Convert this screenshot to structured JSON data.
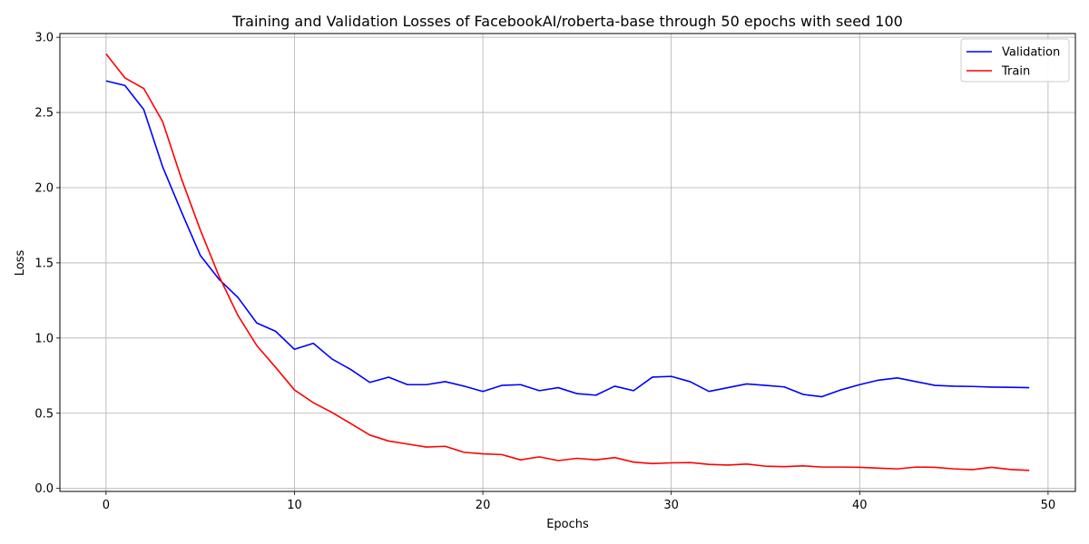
{
  "chart_data": {
    "type": "line",
    "title": "Training and Validation Losses of FacebookAI/roberta-base through 50 epochs with seed 100",
    "xlabel": "Epochs",
    "ylabel": "Loss",
    "xlim": [
      -2.45,
      51.45
    ],
    "ylim": [
      -0.02,
      3.025
    ],
    "xticks": [
      0,
      10,
      20,
      30,
      40,
      50
    ],
    "yticks": [
      0.0,
      0.5,
      1.0,
      1.5,
      2.0,
      2.5,
      3.0
    ],
    "xtick_labels": [
      "0",
      "10",
      "20",
      "30",
      "40",
      "50"
    ],
    "ytick_labels": [
      "0.0",
      "0.5",
      "1.0",
      "1.5",
      "2.0",
      "2.5",
      "3.0"
    ],
    "grid": true,
    "legend_position": "top-right",
    "x": [
      0,
      1,
      2,
      3,
      4,
      5,
      6,
      7,
      8,
      9,
      10,
      11,
      12,
      13,
      14,
      15,
      16,
      17,
      18,
      19,
      20,
      21,
      22,
      23,
      24,
      25,
      26,
      27,
      28,
      29,
      30,
      31,
      32,
      33,
      34,
      35,
      36,
      37,
      38,
      39,
      40,
      41,
      42,
      43,
      44,
      45,
      46,
      47,
      48,
      49
    ],
    "series": [
      {
        "name": "Validation",
        "color": "#0000ff",
        "values": [
          2.71,
          2.68,
          2.52,
          2.14,
          1.84,
          1.55,
          1.39,
          1.27,
          1.1,
          1.045,
          0.925,
          0.965,
          0.86,
          0.79,
          0.705,
          0.74,
          0.69,
          0.69,
          0.71,
          0.68,
          0.645,
          0.685,
          0.69,
          0.65,
          0.67,
          0.63,
          0.62,
          0.68,
          0.65,
          0.74,
          0.745,
          0.71,
          0.645,
          0.67,
          0.695,
          0.685,
          0.675,
          0.625,
          0.61,
          0.655,
          0.69,
          0.72,
          0.735,
          0.71,
          0.685,
          0.68,
          0.678,
          0.674,
          0.672,
          0.67
        ]
      },
      {
        "name": "Train",
        "color": "#ff0000",
        "values": [
          2.89,
          2.73,
          2.66,
          2.44,
          2.06,
          1.72,
          1.41,
          1.15,
          0.95,
          0.805,
          0.655,
          0.57,
          0.505,
          0.43,
          0.355,
          0.315,
          0.295,
          0.275,
          0.28,
          0.24,
          0.23,
          0.225,
          0.19,
          0.21,
          0.185,
          0.2,
          0.19,
          0.205,
          0.175,
          0.165,
          0.17,
          0.172,
          0.16,
          0.155,
          0.162,
          0.148,
          0.145,
          0.15,
          0.142,
          0.142,
          0.14,
          0.135,
          0.13,
          0.142,
          0.14,
          0.13,
          0.125,
          0.14,
          0.126,
          0.12
        ]
      }
    ]
  }
}
